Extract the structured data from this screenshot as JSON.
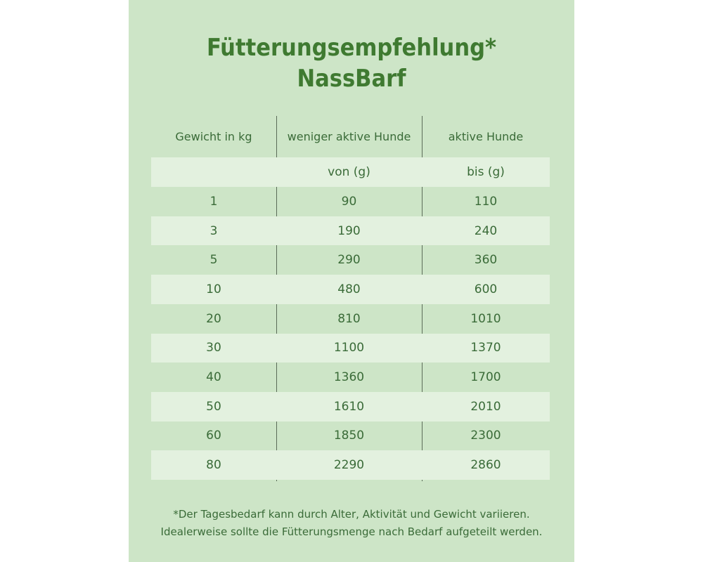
{
  "title": {
    "line1": "Fütterungsempfehlung*",
    "line2": "NassBarf"
  },
  "colors": {
    "panel": "#cde5c7",
    "band": "#e3f1df",
    "title": "#3f7a31",
    "text": "#3a6b38"
  },
  "table": {
    "headers": [
      "Gewicht in kg",
      "weniger aktive Hunde",
      "aktive Hunde"
    ],
    "subheaders": [
      "",
      "von (g)",
      "bis (g)"
    ],
    "rows": [
      [
        "1",
        "90",
        "110"
      ],
      [
        "3",
        "190",
        "240"
      ],
      [
        "5",
        "290",
        "360"
      ],
      [
        "10",
        "480",
        "600"
      ],
      [
        "20",
        "810",
        "1010"
      ],
      [
        "30",
        "1100",
        "1370"
      ],
      [
        "40",
        "1360",
        "1700"
      ],
      [
        "50",
        "1610",
        "2010"
      ],
      [
        "60",
        "1850",
        "2300"
      ],
      [
        "80",
        "2290",
        "2860"
      ]
    ]
  },
  "footnote": {
    "line1": "*Der Tagesbedarf kann durch Alter, Aktivität und Gewicht variieren.",
    "line2": "Idealerweise sollte die Fütterungsmenge nach Bedarf aufgeteilt werden."
  }
}
